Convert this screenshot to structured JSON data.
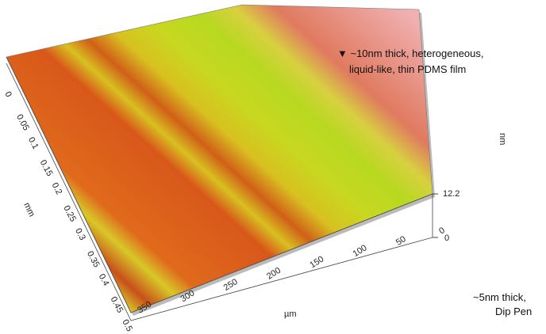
{
  "figure": {
    "y_axis": {
      "label": "mm",
      "ticks": [
        "0",
        "0.05",
        "0.1",
        "0.15",
        "0.2",
        "0.25",
        "0.3",
        "0.35",
        "0.4",
        "0.45",
        "0.5"
      ]
    },
    "x_axis": {
      "label": "µm",
      "ticks": [
        "350",
        "300",
        "250",
        "200",
        "150",
        "100",
        "50",
        "0"
      ]
    },
    "z_axis": {
      "label": "nm",
      "ticks": [
        "12.2",
        "0"
      ]
    },
    "annotations": {
      "top": [
        "▼ ~10nm thick, heterogeneous,",
        "liquid-like, thin PDMS film"
      ],
      "bottom": [
        "~5nm thick,",
        "Dip Pen"
      ]
    }
  }
}
